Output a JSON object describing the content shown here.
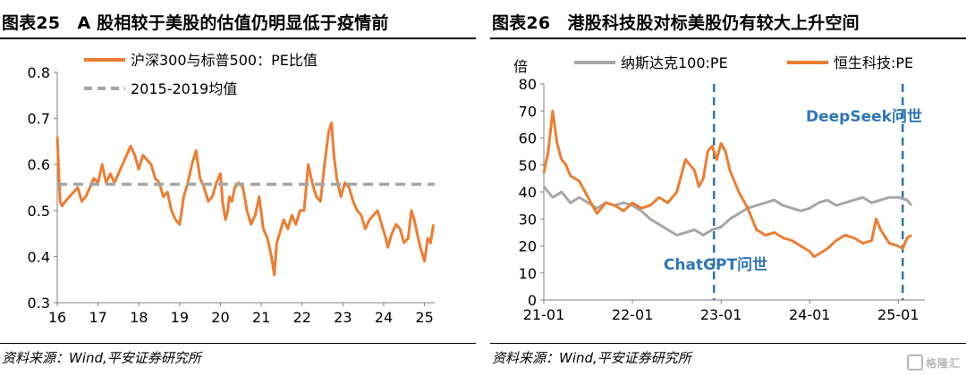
{
  "left": {
    "title": "图表25　A 股相较于美股的估值仍明显低于疫情前",
    "source": "资料来源：Wind,平安证券研究所"
  },
  "right": {
    "title": "图表26　港股科技股对标美股仍有较大上升空间",
    "source": "资料来源：Wind,平安证券研究所"
  },
  "watermark": "格隆汇",
  "colors": {
    "orange": "#ed7d31",
    "gray": "#a6a6a6",
    "blue": "#2e75b6",
    "axis": "#808080"
  },
  "chart_data": [
    {
      "type": "line",
      "xlabel": "",
      "ylabel": "",
      "xticks": [
        "16",
        "17",
        "18",
        "19",
        "20",
        "21",
        "22",
        "23",
        "24",
        "25"
      ],
      "xlim": [
        2016.0,
        2025.25
      ],
      "ylim": [
        0.3,
        0.8
      ],
      "yticks": [
        0.3,
        0.4,
        0.5,
        0.6,
        0.7,
        0.8
      ],
      "ytick_labels": [
        "0.3",
        "0.4",
        "0.5",
        "0.6",
        "0.7",
        "0.8"
      ],
      "legend_position": "top",
      "series": [
        {
          "name": "沪深300与标普500：PE比值",
          "color": "#ed7d31",
          "style": "solid",
          "x": [
            2016.0,
            2016.03,
            2016.07,
            2016.12,
            2016.2,
            2016.3,
            2016.4,
            2016.5,
            2016.6,
            2016.7,
            2016.8,
            2016.9,
            2017.0,
            2017.1,
            2017.2,
            2017.3,
            2017.4,
            2017.5,
            2017.6,
            2017.7,
            2017.8,
            2017.9,
            2018.0,
            2018.1,
            2018.2,
            2018.3,
            2018.4,
            2018.5,
            2018.6,
            2018.7,
            2018.8,
            2018.9,
            2019.0,
            2019.1,
            2019.2,
            2019.3,
            2019.4,
            2019.5,
            2019.6,
            2019.7,
            2019.8,
            2019.9,
            2020.0,
            2020.05,
            2020.12,
            2020.18,
            2020.22,
            2020.28,
            2020.35,
            2020.45,
            2020.55,
            2020.65,
            2020.75,
            2020.85,
            2020.95,
            2021.05,
            2021.15,
            2021.25,
            2021.32,
            2021.38,
            2021.45,
            2021.55,
            2021.65,
            2021.75,
            2021.85,
            2021.95,
            2022.05,
            2022.15,
            2022.25,
            2022.35,
            2022.45,
            2022.55,
            2022.65,
            2022.72,
            2022.78,
            2022.85,
            2022.95,
            2023.05,
            2023.15,
            2023.25,
            2023.35,
            2023.45,
            2023.55,
            2023.65,
            2023.75,
            2023.85,
            2023.95,
            2024.05,
            2024.1,
            2024.2,
            2024.3,
            2024.4,
            2024.5,
            2024.6,
            2024.68,
            2024.75,
            2024.82,
            2024.9,
            2025.0,
            2025.08,
            2025.15,
            2025.22
          ],
          "y": [
            0.66,
            0.6,
            0.52,
            0.51,
            0.52,
            0.53,
            0.54,
            0.55,
            0.52,
            0.53,
            0.55,
            0.57,
            0.56,
            0.6,
            0.56,
            0.58,
            0.56,
            0.58,
            0.6,
            0.62,
            0.64,
            0.62,
            0.59,
            0.62,
            0.61,
            0.6,
            0.57,
            0.56,
            0.53,
            0.54,
            0.5,
            0.48,
            0.47,
            0.53,
            0.56,
            0.6,
            0.63,
            0.57,
            0.55,
            0.52,
            0.53,
            0.56,
            0.58,
            0.52,
            0.48,
            0.5,
            0.53,
            0.52,
            0.55,
            0.56,
            0.55,
            0.5,
            0.47,
            0.49,
            0.53,
            0.46,
            0.44,
            0.4,
            0.36,
            0.43,
            0.45,
            0.48,
            0.46,
            0.49,
            0.47,
            0.5,
            0.5,
            0.6,
            0.56,
            0.53,
            0.52,
            0.6,
            0.67,
            0.69,
            0.62,
            0.57,
            0.53,
            0.56,
            0.55,
            0.52,
            0.5,
            0.49,
            0.46,
            0.48,
            0.49,
            0.5,
            0.47,
            0.44,
            0.42,
            0.45,
            0.47,
            0.46,
            0.43,
            0.44,
            0.5,
            0.48,
            0.45,
            0.42,
            0.39,
            0.44,
            0.43,
            0.47
          ]
        },
        {
          "name": "2015-2019均值",
          "color": "#a6a6a6",
          "style": "dashed",
          "x": [
            2016.0,
            2025.25
          ],
          "y": [
            0.557,
            0.557
          ]
        }
      ]
    },
    {
      "type": "line",
      "xlabel": "",
      "ylabel": "倍",
      "xticks": [
        "21-01",
        "22-01",
        "23-01",
        "24-01",
        "25-01"
      ],
      "xlim": [
        2021.0,
        2025.3
      ],
      "ylim": [
        0,
        80
      ],
      "yticks": [
        0,
        10,
        20,
        30,
        40,
        50,
        60,
        70,
        80
      ],
      "ytick_labels": [
        "0",
        "10",
        "20",
        "30",
        "40",
        "50",
        "60",
        "70",
        "80"
      ],
      "legend_position": "top",
      "series": [
        {
          "name": "纳斯达克100:PE",
          "color": "#a6a6a6",
          "style": "solid",
          "x": [
            2021.0,
            2021.1,
            2021.2,
            2021.3,
            2021.4,
            2021.5,
            2021.6,
            2021.7,
            2021.8,
            2021.9,
            2022.0,
            2022.1,
            2022.2,
            2022.3,
            2022.4,
            2022.5,
            2022.6,
            2022.7,
            2022.8,
            2022.9,
            2023.0,
            2023.1,
            2023.2,
            2023.3,
            2023.4,
            2023.5,
            2023.6,
            2023.7,
            2023.8,
            2023.9,
            2024.0,
            2024.1,
            2024.2,
            2024.3,
            2024.4,
            2024.5,
            2024.6,
            2024.7,
            2024.8,
            2024.9,
            2025.0,
            2025.1,
            2025.15
          ],
          "y": [
            42,
            38,
            40,
            36,
            38,
            36,
            34,
            36,
            35,
            36,
            35,
            33,
            30,
            28,
            26,
            24,
            25,
            26,
            24,
            26,
            27,
            30,
            32,
            34,
            35,
            36,
            37,
            35,
            34,
            33,
            34,
            36,
            37,
            35,
            36,
            37,
            38,
            36,
            37,
            38,
            38,
            37,
            35
          ]
        },
        {
          "name": "恒生科技:PE",
          "color": "#ed7d31",
          "style": "solid",
          "x": [
            2021.0,
            2021.05,
            2021.1,
            2021.15,
            2021.2,
            2021.25,
            2021.3,
            2021.4,
            2021.5,
            2021.6,
            2021.7,
            2021.8,
            2021.9,
            2022.0,
            2022.1,
            2022.2,
            2022.3,
            2022.4,
            2022.5,
            2022.6,
            2022.7,
            2022.75,
            2022.8,
            2022.85,
            2022.9,
            2022.95,
            2023.0,
            2023.05,
            2023.1,
            2023.15,
            2023.2,
            2023.3,
            2023.4,
            2023.5,
            2023.6,
            2023.7,
            2023.8,
            2023.9,
            2024.0,
            2024.05,
            2024.1,
            2024.2,
            2024.3,
            2024.4,
            2024.5,
            2024.6,
            2024.7,
            2024.75,
            2024.8,
            2024.9,
            2025.0,
            2025.05,
            2025.1,
            2025.15
          ],
          "y": [
            47,
            55,
            70,
            58,
            52,
            50,
            46,
            44,
            38,
            32,
            36,
            35,
            33,
            36,
            34,
            35,
            38,
            36,
            40,
            52,
            48,
            42,
            45,
            55,
            57,
            52,
            58,
            55,
            48,
            44,
            40,
            34,
            26,
            24,
            25,
            23,
            22,
            20,
            18,
            16,
            17,
            19,
            22,
            24,
            23,
            21,
            22,
            30,
            26,
            21,
            20,
            19,
            23,
            24
          ]
        }
      ],
      "annotations": [
        {
          "text": "ChatGPT问世",
          "x": 2022.92
        },
        {
          "text": "DeepSeek问世",
          "x": 2025.05
        }
      ]
    }
  ]
}
